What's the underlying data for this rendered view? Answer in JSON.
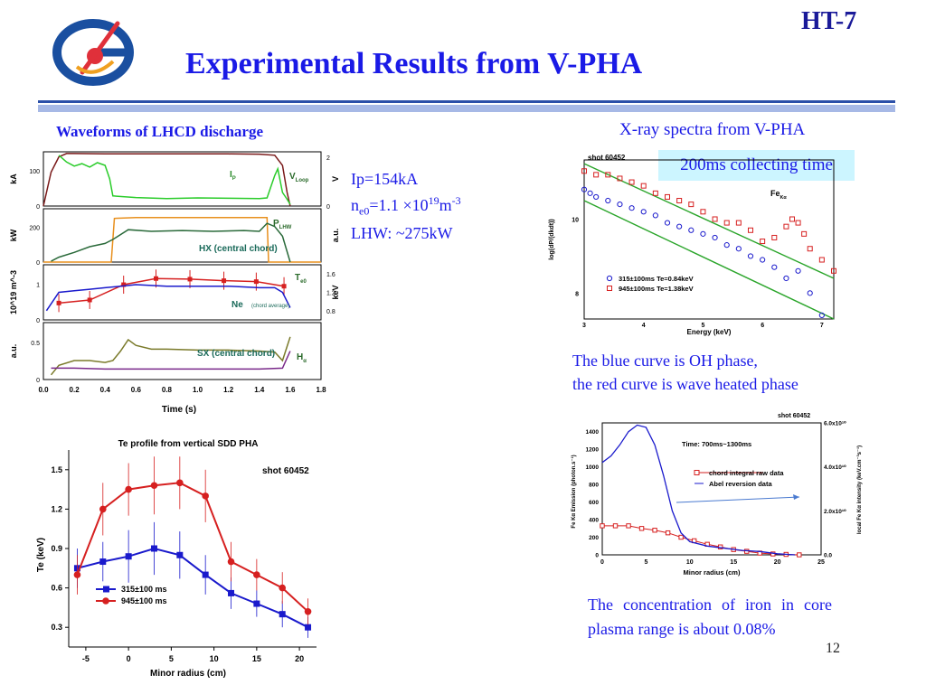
{
  "header": {
    "title": "Experimental Results from V-PHA",
    "tag": "HT-7",
    "logo_icon": "institute-logo-icon"
  },
  "left_section": {
    "title": "Waveforms of LHCD discharge"
  },
  "right_section": {
    "title": "X-ray spectra from V-PHA",
    "note": "200ms collecting time"
  },
  "params": {
    "ip": "Ip=154kA",
    "ne": {
      "prefix": "n",
      "sub": "e0",
      "mid": "=1.1 ×10",
      "sup": "19",
      "unit": "m",
      "unit_sup": "-3"
    },
    "lhw": "LHW: ~275kW"
  },
  "spectra_note": [
    "The blue curve is OH phase,",
    "the red curve is wave heated phase"
  ],
  "iron_note": "The concentration of iron in core plasma range is about 0.08%",
  "page_number": "12",
  "colors": {
    "title": "#1a1ae6",
    "blue_series": "#1a1acc",
    "red_series": "#d62020",
    "green": "#2aa52a",
    "orange": "#e8901e",
    "dark_green": "#2a6a3a",
    "maroon": "#7a1a1a",
    "olive": "#7a7a2a",
    "purple": "#7a2a8a"
  },
  "chart_data": [
    {
      "id": "waveforms",
      "type": "line",
      "xlabel": "Time (s)",
      "xlim": [
        0,
        1.8
      ],
      "xticks": [
        "0.0",
        "0.2",
        "0.4",
        "0.6",
        "0.8",
        "1.0",
        "1.2",
        "1.4",
        "1.6",
        "1.8"
      ],
      "panels": [
        {
          "ylabel_left": "kA",
          "ylabel_right": "V",
          "yticks_left": [
            "0",
            "100"
          ],
          "yticks_right": [
            "0",
            "2"
          ],
          "ylim": [
            0,
            160
          ],
          "series": [
            {
              "name": "Ip",
              "name_main": "I",
              "name_sub": "P",
              "color": "#7a1a1a",
              "x": [
                0,
                0.05,
                0.1,
                0.15,
                0.2,
                0.4,
                0.6,
                0.8,
                1.0,
                1.2,
                1.4,
                1.5,
                1.55,
                1.58,
                1.6
              ],
              "y": [
                0,
                100,
                145,
                155,
                155,
                154,
                154,
                154,
                154,
                154,
                153,
                150,
                120,
                40,
                0
              ]
            },
            {
              "name": "VLoop",
              "name_main": "V",
              "name_sub": "Loop",
              "color": "#2acc2a",
              "x": [
                0.1,
                0.15,
                0.2,
                0.25,
                0.3,
                0.35,
                0.4,
                0.43,
                0.45,
                0.6,
                0.8,
                1.0,
                1.2,
                1.4,
                1.45,
                1.5,
                1.52,
                1.55,
                1.58,
                1.6
              ],
              "y": [
                150,
                130,
                118,
                125,
                115,
                128,
                120,
                80,
                30,
                25,
                22,
                24,
                23,
                22,
                24,
                90,
                110,
                40,
                20,
                5
              ]
            }
          ]
        },
        {
          "ylabel_left": "kW",
          "ylabel_right": "a.u.",
          "yticks_left": [
            "0",
            "200"
          ],
          "ylim": [
            0,
            330
          ],
          "series": [
            {
              "name": "PLHW",
              "name_main": "P",
              "name_sub": "LHW",
              "color": "#e8901e",
              "x": [
                0.0,
                0.44,
                0.46,
                0.6,
                0.8,
                1.0,
                1.2,
                1.4,
                1.45,
                1.46,
                1.8
              ],
              "y": [
                0,
                0,
                270,
                275,
                275,
                275,
                275,
                275,
                275,
                0,
                0
              ]
            },
            {
              "name": "HX (central chord)",
              "color": "#2a6a3a",
              "x": [
                0.05,
                0.1,
                0.2,
                0.3,
                0.4,
                0.45,
                0.55,
                0.7,
                0.9,
                1.1,
                1.3,
                1.4,
                1.45,
                1.5,
                1.55,
                1.6
              ],
              "y": [
                5,
                30,
                60,
                95,
                115,
                140,
                200,
                190,
                195,
                190,
                195,
                190,
                240,
                220,
                160,
                0
              ]
            }
          ]
        },
        {
          "ylabel_left": "10^19 m^-3",
          "ylabel_right": "keV",
          "yticks_left": [
            "0",
            "1"
          ],
          "yticks_right": [
            "0.8",
            "1.2",
            "1.6"
          ],
          "ylim": [
            0,
            1.8
          ],
          "series": [
            {
              "name": "Te0",
              "name_main": "T",
              "name_sub": "e0",
              "color": "#d62020",
              "x": [
                0.1,
                0.3,
                0.52,
                0.73,
                0.95,
                1.17,
                1.38,
                1.56
              ],
              "y": [
                0.55,
                0.65,
                1.15,
                1.35,
                1.33,
                1.28,
                1.25,
                1.1
              ]
            },
            {
              "name": "Ne",
              "subtitle": "(chord average)",
              "color": "#1a1acc",
              "x": [
                0.02,
                0.1,
                0.2,
                0.3,
                0.4,
                0.5,
                0.6,
                0.8,
                1.0,
                1.2,
                1.4,
                1.5,
                1.55,
                1.6
              ],
              "y": [
                0.3,
                0.9,
                0.95,
                1.0,
                1.05,
                1.1,
                1.15,
                1.1,
                1.1,
                1.1,
                1.05,
                1.05,
                0.9,
                0.4
              ]
            }
          ]
        },
        {
          "ylabel_left": "a.u.",
          "yticks_left": [
            "0",
            "0.5"
          ],
          "ylim": [
            0,
            0.6
          ],
          "series": [
            {
              "name": "SX (central chord)",
              "color": "#7a7a2a",
              "x": [
                0.05,
                0.1,
                0.2,
                0.3,
                0.4,
                0.45,
                0.5,
                0.55,
                0.6,
                0.7,
                0.8,
                1.0,
                1.2,
                1.4,
                1.5,
                1.55,
                1.6
              ],
              "y": [
                0.05,
                0.15,
                0.2,
                0.2,
                0.18,
                0.2,
                0.3,
                0.42,
                0.36,
                0.32,
                0.32,
                0.31,
                0.31,
                0.3,
                0.29,
                0.2,
                0.45
              ]
            },
            {
              "name": "Ha",
              "name_main": "H",
              "name_sub": "α",
              "color": "#7a2a8a",
              "x": [
                0.05,
                0.2,
                0.4,
                0.6,
                0.8,
                1.0,
                1.2,
                1.4,
                1.55,
                1.6
              ],
              "y": [
                0.12,
                0.12,
                0.11,
                0.11,
                0.11,
                0.11,
                0.11,
                0.11,
                0.12,
                0.3
              ]
            }
          ]
        }
      ]
    },
    {
      "id": "te-profile",
      "type": "line",
      "title": "Te profile from vertical SDD PHA",
      "annotation": "shot 60452",
      "xlabel": "Minor radius (cm)",
      "ylabel": "Te (keV)",
      "xlim": [
        -7,
        22
      ],
      "ylim": [
        0.15,
        1.65
      ],
      "xticks": [
        "-5",
        "0",
        "5",
        "10",
        "15",
        "20"
      ],
      "xtick_values": [
        -5,
        0,
        5,
        10,
        15,
        20
      ],
      "yticks": [
        "0.3",
        "0.6",
        "0.9",
        "1.2",
        "1.5"
      ],
      "ytick_values": [
        0.3,
        0.6,
        0.9,
        1.2,
        1.5
      ],
      "legend_position": "bottom-left",
      "series": [
        {
          "name": "315±100 ms",
          "color": "#1a1acc",
          "marker": "square",
          "x": [
            -6,
            -3,
            0,
            3,
            6,
            9,
            12,
            15,
            18,
            21
          ],
          "y": [
            0.75,
            0.8,
            0.84,
            0.9,
            0.85,
            0.7,
            0.56,
            0.48,
            0.4,
            0.3
          ],
          "err": [
            0.15,
            0.15,
            0.2,
            0.2,
            0.18,
            0.15,
            0.12,
            0.1,
            0.1,
            0.08
          ]
        },
        {
          "name": "945±100 ms",
          "color": "#d62020",
          "marker": "circle",
          "x": [
            -6,
            -3,
            0,
            3,
            6,
            9,
            12,
            15,
            18,
            21
          ],
          "y": [
            0.7,
            1.2,
            1.35,
            1.38,
            1.4,
            1.3,
            0.8,
            0.7,
            0.6,
            0.42
          ],
          "err": [
            0.15,
            0.2,
            0.2,
            0.22,
            0.2,
            0.2,
            0.15,
            0.12,
            0.12,
            0.1
          ]
        }
      ]
    },
    {
      "id": "xray-spectra",
      "type": "scatter",
      "annotation": "shot 60452",
      "xlabel": "Energy (keV)",
      "ylabel": "log(dP/(dkdt))",
      "xlim": [
        3,
        7.2
      ],
      "ylim": [
        7.3,
        11.6
      ],
      "xticks": [
        "3",
        "4",
        "5",
        "6",
        "7"
      ],
      "xtick_values": [
        3,
        4,
        5,
        6,
        7
      ],
      "yticks": [
        "8",
        "10"
      ],
      "ytick_values": [
        8,
        10
      ],
      "line_label": {
        "main": "Fe",
        "sub": "Kα"
      },
      "series": [
        {
          "name": "315±100ms Te=0.84keV",
          "color": "#1a1acc",
          "marker": "circle-open",
          "x": [
            3.0,
            3.1,
            3.2,
            3.4,
            3.6,
            3.8,
            4.0,
            4.2,
            4.4,
            4.6,
            4.8,
            5.0,
            5.2,
            5.4,
            5.6,
            5.8,
            6.0,
            6.2,
            6.4,
            6.6,
            6.8,
            7.0
          ],
          "y": [
            10.8,
            10.7,
            10.6,
            10.5,
            10.4,
            10.3,
            10.2,
            10.1,
            9.9,
            9.8,
            9.7,
            9.6,
            9.5,
            9.3,
            9.2,
            9.0,
            8.9,
            8.7,
            8.4,
            8.6,
            8.0,
            7.4
          ]
        },
        {
          "name": "945±100ms Te=1.38keV",
          "color": "#d62020",
          "marker": "square-open",
          "x": [
            3.0,
            3.2,
            3.4,
            3.6,
            3.8,
            4.0,
            4.2,
            4.4,
            4.6,
            4.8,
            5.0,
            5.2,
            5.4,
            5.6,
            5.8,
            6.0,
            6.2,
            6.4,
            6.5,
            6.6,
            6.7,
            6.8,
            7.0,
            7.2
          ],
          "y": [
            11.3,
            11.2,
            11.2,
            11.1,
            11.0,
            10.9,
            10.7,
            10.6,
            10.5,
            10.4,
            10.2,
            10.0,
            9.9,
            9.9,
            9.7,
            9.4,
            9.5,
            9.8,
            10.0,
            9.9,
            9.6,
            9.2,
            8.9,
            8.6
          ]
        }
      ],
      "fits": [
        {
          "color": "#2aa52a",
          "x": [
            3.0,
            7.2
          ],
          "y": [
            10.5,
            7.3
          ]
        },
        {
          "color": "#2aa52a",
          "x": [
            3.0,
            7.2
          ],
          "y": [
            11.5,
            8.4
          ]
        }
      ]
    },
    {
      "id": "iron-emission",
      "type": "line",
      "annotation": "shot 60452",
      "subtitle": "Time: 700ms~1300ms",
      "xlabel": "Minor radius (cm)",
      "ylabel_left": "Fe Kα Emission (photon.s⁻¹)",
      "ylabel_right": "local Fe Kα intensity (keV.cm⁻³s⁻¹)",
      "xlim": [
        0,
        25
      ],
      "ylim": [
        0,
        1500
      ],
      "xticks": [
        "0",
        "5",
        "10",
        "15",
        "20",
        "25"
      ],
      "xtick_values": [
        0,
        5,
        10,
        15,
        20,
        25
      ],
      "yticks": [
        "0",
        "200",
        "400",
        "600",
        "800",
        "1000",
        "1200",
        "1400"
      ],
      "ytick_values": [
        0,
        200,
        400,
        600,
        800,
        1000,
        1200,
        1400
      ],
      "yticks_right": [
        "0.0",
        "2.0x10¹⁰",
        "4.0x10¹⁰",
        "6.0x10¹⁰"
      ],
      "ylim_right": [
        0,
        6
      ],
      "series": [
        {
          "name": "chord integral raw data",
          "color": "#d62020",
          "marker": "square-open",
          "x": [
            0,
            1.5,
            3,
            4.5,
            6,
            7.5,
            9,
            10.5,
            12,
            13.5,
            15,
            16.5,
            18,
            19.5,
            21,
            22.5
          ],
          "y": [
            330,
            330,
            330,
            300,
            280,
            250,
            200,
            160,
            120,
            90,
            60,
            40,
            20,
            10,
            5,
            0
          ]
        },
        {
          "name": "Abel reversion data",
          "color": "#1a1acc",
          "axis": "right",
          "x": [
            0,
            1,
            2,
            3,
            4,
            5,
            6,
            7,
            8,
            9,
            10,
            12,
            14,
            16,
            18,
            20,
            22
          ],
          "y": [
            4.2,
            4.5,
            5.0,
            5.6,
            5.9,
            5.8,
            5.0,
            3.6,
            2.0,
            1.0,
            0.6,
            0.4,
            0.3,
            0.2,
            0.15,
            0.05,
            0.0
          ]
        }
      ]
    }
  ]
}
